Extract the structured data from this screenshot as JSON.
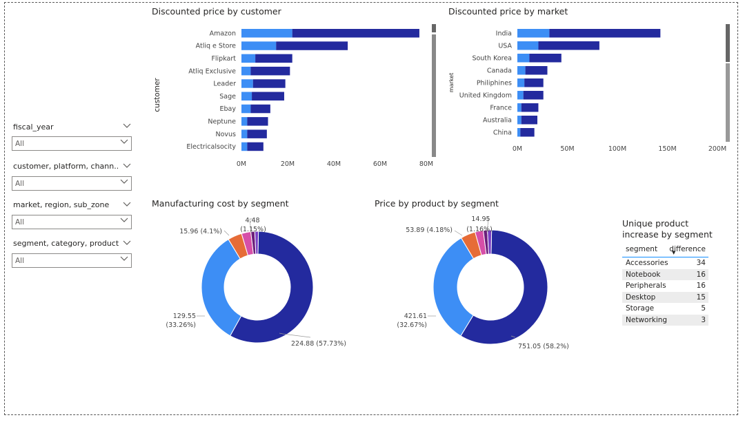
{
  "slicers": [
    {
      "label": "fiscal_year",
      "value": "All"
    },
    {
      "label": "customer, platform, chann...",
      "value": "All"
    },
    {
      "label": "market, region, sub_zone",
      "value": "All"
    },
    {
      "label": "segment, category, product",
      "value": "All"
    }
  ],
  "colors": {
    "dark": "#232a9e",
    "light": "#3d8ef5",
    "orange": "#e66c37",
    "magenta": "#d64fa8",
    "purple": "#6b1f7b",
    "violet": "#7a3fc4"
  },
  "chart_data": [
    {
      "type": "bar",
      "title": "Discounted price by customer",
      "ylabel": "customer",
      "categories": [
        "Amazon",
        "Atliq e Store",
        "Flipkart",
        "Atliq Exclusive",
        "Leader",
        "Sage",
        "Ebay",
        "Neptune",
        "Novus",
        "Electricalsocity"
      ],
      "series": [
        {
          "values": [
            22,
            15,
            6,
            4,
            5,
            4.5,
            4,
            2.5,
            2.5,
            2.5
          ]
        },
        {
          "values": [
            55,
            31,
            16,
            17,
            14,
            14,
            8.5,
            9,
            8.5,
            7
          ]
        }
      ],
      "xlim": [
        0,
        80
      ],
      "xticks": [
        "0M",
        "20M",
        "40M",
        "60M",
        "80M"
      ]
    },
    {
      "type": "bar",
      "title": "Discounted price by market",
      "ylabel": "market",
      "categories": [
        "India",
        "USA",
        "South Korea",
        "Canada",
        "Philiphines",
        "United Kingdom",
        "France",
        "Australia",
        "China"
      ],
      "series": [
        {
          "values": [
            32,
            21,
            12,
            8,
            7,
            6,
            4,
            4,
            3
          ]
        },
        {
          "values": [
            111,
            61,
            32,
            22,
            19,
            20,
            17,
            16,
            14
          ]
        }
      ],
      "xlim": [
        0,
        200
      ],
      "xticks": [
        "0M",
        "50M",
        "100M",
        "150M",
        "200M"
      ]
    },
    {
      "type": "pie",
      "title": "Manufacturing cost by segment",
      "values": [
        224.88,
        129.55,
        15.96,
        10.5,
        4.48,
        4.0
      ],
      "labels": [
        "224.88 (57.73%)",
        "129.55",
        "(33.26%)",
        "15.96 (4.1%)",
        "4.48",
        "(1.15%)"
      ]
    },
    {
      "type": "pie",
      "title": "Price by product by segment",
      "values": [
        751.05,
        421.61,
        53.89,
        30.0,
        14.95,
        15.0
      ],
      "labels": [
        "751.05 (58.2%)",
        "421.61",
        "(32.67%)",
        "53.89 (4.18%)",
        "14.95",
        "(1.16%)"
      ]
    },
    {
      "type": "table",
      "title": "Unique product increase by segment",
      "columns": [
        "segment",
        "difference"
      ],
      "rows": [
        [
          "Accessories",
          "34"
        ],
        [
          "Notebook",
          "16"
        ],
        [
          "Peripherals",
          "16"
        ],
        [
          "Desktop",
          "15"
        ],
        [
          "Storage",
          "5"
        ],
        [
          "Networking",
          "3"
        ]
      ]
    }
  ]
}
